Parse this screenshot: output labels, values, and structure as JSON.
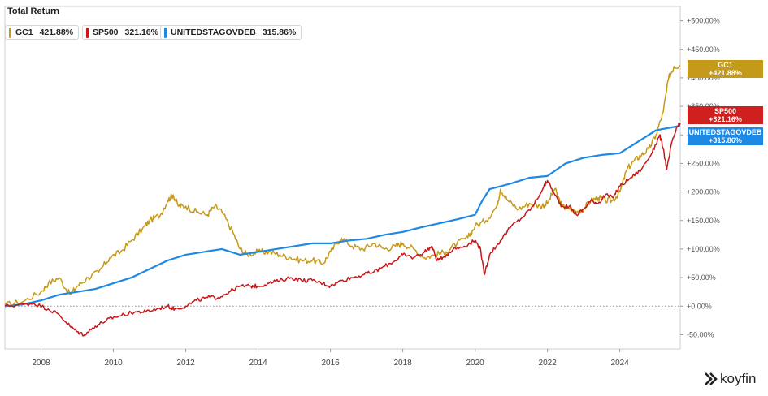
{
  "header": {
    "title": "Total Return"
  },
  "legend": [
    {
      "name": "GC1",
      "value": "421.88%",
      "color": "#c59a1a"
    },
    {
      "name": "SP500",
      "value": "321.16%",
      "color": "#c8171b"
    },
    {
      "name": "UNITEDSTAGOVDEB",
      "value": "315.86%",
      "color": "#1e88e5"
    }
  ],
  "tags": [
    {
      "name": "GC1",
      "value": "+421.88%",
      "color": "#c59a1a"
    },
    {
      "name": "SP500",
      "value": "+321.16%",
      "color": "#d01f1f"
    },
    {
      "name": "UNITEDSTAGOVDEB",
      "value": "+315.86%",
      "color": "#1e88e5"
    }
  ],
  "brand": {
    "name": "koyfin"
  },
  "chart_data": {
    "type": "line",
    "title": "Total Return",
    "xlabel": "",
    "ylabel": "",
    "xlim": [
      2007.0,
      2025.67
    ],
    "ylim": [
      -75,
      525
    ],
    "x_ticks": [
      2008,
      2010,
      2012,
      2014,
      2016,
      2018,
      2020,
      2022,
      2024
    ],
    "y_ticks": [
      {
        "value": 500,
        "label": "+500.00%"
      },
      {
        "value": 450,
        "label": "+450.00%"
      },
      {
        "value": 400,
        "label": "+400.00%"
      },
      {
        "value": 350,
        "label": "+350.00%"
      },
      {
        "value": 300,
        "label": "+300.00%"
      },
      {
        "value": 250,
        "label": "+250.00%"
      },
      {
        "value": 200,
        "label": "+200.00%"
      },
      {
        "value": 150,
        "label": "+150.00%"
      },
      {
        "value": 100,
        "label": "+100.00%"
      },
      {
        "value": 50,
        "label": "+50.00%"
      },
      {
        "value": 0,
        "label": "+0.00%"
      },
      {
        "value": -50,
        "label": "-50.00%"
      }
    ],
    "series": [
      {
        "name": "GC1",
        "color": "#c59a1a",
        "x": [
          2007.0,
          2007.5,
          2008.0,
          2008.2,
          2008.5,
          2008.8,
          2009.0,
          2009.3,
          2009.6,
          2009.9,
          2010.2,
          2010.5,
          2010.8,
          2011.0,
          2011.3,
          2011.5,
          2011.65,
          2011.8,
          2012.0,
          2012.3,
          2012.6,
          2012.8,
          2013.0,
          2013.3,
          2013.5,
          2013.7,
          2014.0,
          2014.3,
          2014.6,
          2014.9,
          2015.2,
          2015.5,
          2015.8,
          2016.0,
          2016.3,
          2016.6,
          2016.9,
          2017.2,
          2017.5,
          2017.8,
          2018.0,
          2018.3,
          2018.6,
          2018.9,
          2019.2,
          2019.5,
          2019.8,
          2020.0,
          2020.3,
          2020.6,
          2020.7,
          2020.9,
          2021.2,
          2021.5,
          2021.8,
          2022.0,
          2022.2,
          2022.4,
          2022.6,
          2022.8,
          2023.0,
          2023.2,
          2023.4,
          2023.6,
          2023.8,
          2024.0,
          2024.2,
          2024.4,
          2024.6,
          2024.8,
          2025.0,
          2025.2,
          2025.35,
          2025.5,
          2025.67
        ],
        "y": [
          2,
          8,
          25,
          40,
          50,
          20,
          35,
          50,
          60,
          85,
          95,
          115,
          135,
          150,
          160,
          185,
          195,
          175,
          175,
          165,
          160,
          175,
          165,
          130,
          100,
          90,
          95,
          95,
          90,
          85,
          80,
          80,
          75,
          95,
          120,
          105,
          100,
          110,
          100,
          105,
          110,
          100,
          85,
          90,
          95,
          110,
          120,
          140,
          150,
          175,
          205,
          185,
          170,
          180,
          175,
          180,
          205,
          175,
          170,
          165,
          170,
          185,
          190,
          185,
          185,
          200,
          240,
          255,
          265,
          275,
          300,
          340,
          400,
          420,
          422
        ]
      },
      {
        "name": "SP500",
        "color": "#c8171b",
        "x": [
          2007.0,
          2007.5,
          2007.8,
          2008.2,
          2008.5,
          2008.8,
          2009.0,
          2009.2,
          2009.5,
          2009.8,
          2010.0,
          2010.3,
          2010.6,
          2010.9,
          2011.2,
          2011.5,
          2011.7,
          2012.0,
          2012.3,
          2012.6,
          2012.9,
          2013.2,
          2013.5,
          2013.8,
          2014.0,
          2014.3,
          2014.6,
          2014.9,
          2015.2,
          2015.5,
          2015.8,
          2016.0,
          2016.3,
          2016.6,
          2016.9,
          2017.2,
          2017.5,
          2017.8,
          2018.0,
          2018.3,
          2018.6,
          2018.8,
          2018.95,
          2019.1,
          2019.4,
          2019.7,
          2020.0,
          2020.15,
          2020.25,
          2020.4,
          2020.7,
          2021.0,
          2021.3,
          2021.6,
          2021.9,
          2022.0,
          2022.2,
          2022.4,
          2022.6,
          2022.8,
          2023.0,
          2023.2,
          2023.4,
          2023.6,
          2023.8,
          2024.0,
          2024.3,
          2024.6,
          2024.9,
          2025.1,
          2025.2,
          2025.3,
          2025.45,
          2025.6,
          2025.67
        ],
        "y": [
          0,
          3,
          5,
          -5,
          -15,
          -35,
          -45,
          -50,
          -35,
          -25,
          -20,
          -15,
          -10,
          -10,
          -5,
          0,
          -5,
          0,
          10,
          15,
          15,
          25,
          35,
          35,
          35,
          40,
          45,
          50,
          45,
          45,
          40,
          35,
          45,
          50,
          55,
          60,
          70,
          80,
          90,
          85,
          95,
          105,
          80,
          85,
          100,
          105,
          115,
          100,
          55,
          90,
          115,
          140,
          155,
          175,
          210,
          220,
          195,
          175,
          175,
          160,
          170,
          185,
          180,
          195,
          190,
          210,
          225,
          240,
          270,
          300,
          275,
          240,
          290,
          315,
          321
        ]
      },
      {
        "name": "UNITEDSTAGOVDEB",
        "color": "#1e88e5",
        "x": [
          2007.0,
          2007.5,
          2008.0,
          2008.5,
          2009.0,
          2009.5,
          2010.0,
          2010.5,
          2011.0,
          2011.5,
          2012.0,
          2012.5,
          2013.0,
          2013.5,
          2014.0,
          2014.5,
          2015.0,
          2015.5,
          2016.0,
          2016.5,
          2017.0,
          2017.5,
          2018.0,
          2018.5,
          2019.0,
          2019.5,
          2020.0,
          2020.2,
          2020.4,
          2020.7,
          2021.0,
          2021.5,
          2022.0,
          2022.5,
          2023.0,
          2023.5,
          2024.0,
          2024.5,
          2025.0,
          2025.67
        ],
        "y": [
          0,
          3,
          10,
          20,
          25,
          30,
          40,
          50,
          65,
          80,
          90,
          95,
          100,
          90,
          95,
          100,
          105,
          110,
          110,
          115,
          118,
          125,
          130,
          138,
          145,
          152,
          160,
          185,
          205,
          210,
          215,
          225,
          228,
          250,
          260,
          265,
          268,
          288,
          308,
          316
        ]
      }
    ]
  }
}
